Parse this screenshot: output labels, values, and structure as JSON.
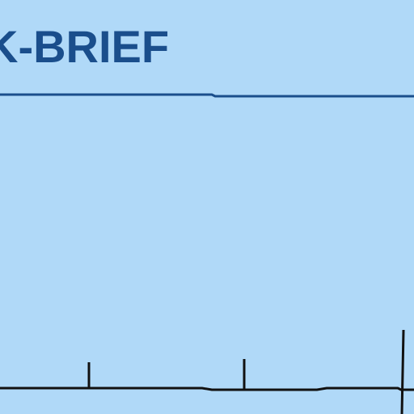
{
  "header": {
    "title": "K-BRIEF",
    "title_color": "#1a4e8c"
  },
  "colors": {
    "background": "#b0d9f8",
    "rule": "#1a4e8c",
    "timeline": "#111111"
  }
}
